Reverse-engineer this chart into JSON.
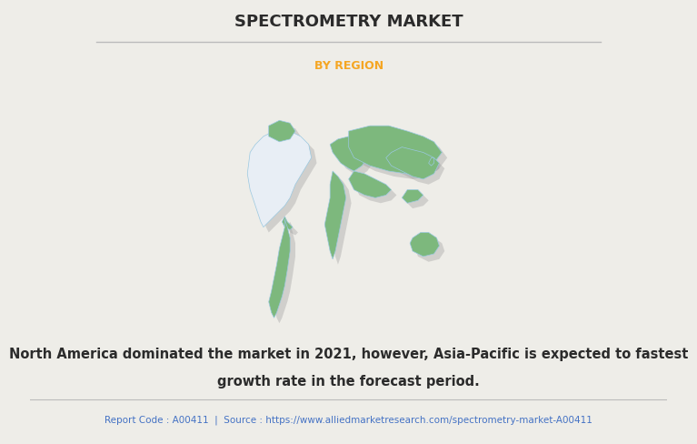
{
  "title": "SPECTROMETRY MARKET",
  "subtitle": "BY REGION",
  "subtitle_color": "#F5A623",
  "title_color": "#2B2B2B",
  "background_color": "#EEEDE8",
  "map_land_color": "#7DB87D",
  "north_america_color": "#E8EEF5",
  "map_border_color": "#9AC8E0",
  "map_shadow_color": "#999999",
  "description_line1": "North America dominated the market in 2021, however, Asia-Pacific is expected to fastest",
  "description_line2": "growth rate in the forecast period.",
  "footer_text": "Report Code : A00411  |  Source : https://www.alliedmarketresearch.com/spectrometry-market-A00411",
  "footer_color": "#4472C4",
  "description_color": "#2B2B2B",
  "title_fontsize": 13,
  "subtitle_fontsize": 9,
  "description_fontsize": 10.5,
  "footer_fontsize": 7.5,
  "title_separator_color": "#BBBBBB"
}
